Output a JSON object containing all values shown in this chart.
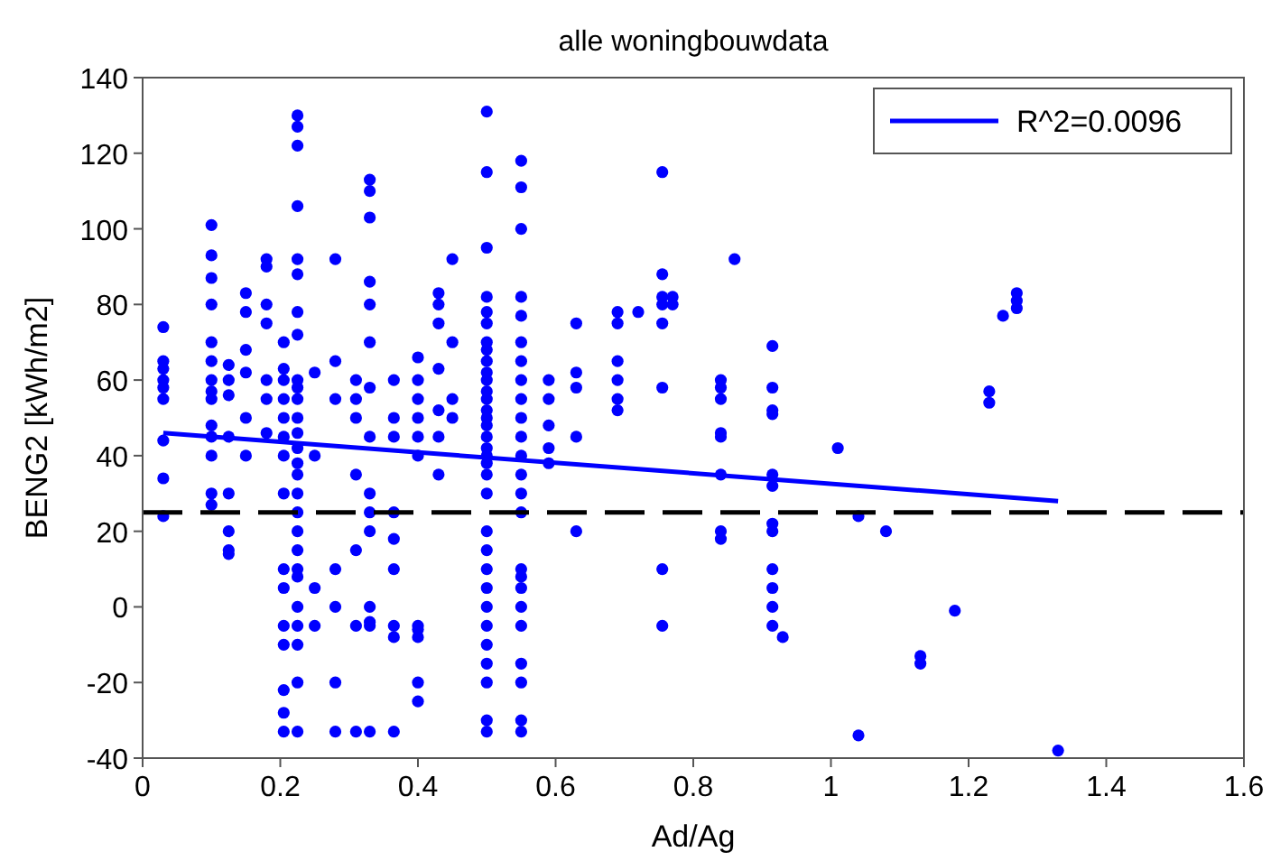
{
  "chart_data": {
    "type": "scatter",
    "title": "alle woningbouwdata",
    "xlabel": "Ad/Ag",
    "ylabel": "BENG2 [kWh/m2]",
    "xlim": [
      0,
      1.6
    ],
    "xticks": [
      0,
      0.2,
      0.4,
      0.6,
      0.8,
      1,
      1.2,
      1.4,
      1.6
    ],
    "ylim": [
      -40,
      140
    ],
    "yticks": [
      -40,
      -20,
      0,
      20,
      40,
      60,
      80,
      100,
      120,
      140
    ],
    "legend": "top right",
    "ref_lines": [
      {
        "axis": "y",
        "value": 25,
        "color": "#000000",
        "line_style": "dashed"
      }
    ],
    "series": [
      {
        "marker": "circle",
        "color": "#0000ff",
        "x": [
          0.03,
          0.03,
          0.03,
          0.03,
          0.03,
          0.03,
          0.03,
          0.03,
          0.03,
          0.1,
          0.1,
          0.1,
          0.1,
          0.1,
          0.1,
          0.1,
          0.1,
          0.1,
          0.1,
          0.1,
          0.1,
          0.1,
          0.1,
          0.125,
          0.125,
          0.125,
          0.125,
          0.125,
          0.125,
          0.125,
          0.125,
          0.15,
          0.15,
          0.15,
          0.15,
          0.15,
          0.15,
          0.18,
          0.18,
          0.18,
          0.18,
          0.18,
          0.18,
          0.18,
          0.205,
          0.205,
          0.205,
          0.205,
          0.205,
          0.205,
          0.205,
          0.205,
          0.205,
          0.205,
          0.205,
          0.205,
          0.205,
          0.205,
          0.205,
          0.225,
          0.225,
          0.225,
          0.225,
          0.225,
          0.225,
          0.225,
          0.225,
          0.225,
          0.225,
          0.225,
          0.225,
          0.225,
          0.225,
          0.225,
          0.225,
          0.225,
          0.225,
          0.225,
          0.225,
          0.225,
          0.225,
          0.225,
          0.225,
          0.225,
          0.225,
          0.225,
          0.25,
          0.25,
          0.25,
          0.25,
          0.28,
          0.28,
          0.28,
          0.28,
          0.28,
          0.28,
          0.28,
          0.31,
          0.31,
          0.31,
          0.31,
          0.31,
          0.31,
          0.31,
          0.33,
          0.33,
          0.33,
          0.33,
          0.33,
          0.33,
          0.33,
          0.33,
          0.33,
          0.33,
          0.33,
          0.33,
          0.33,
          0.33,
          0.33,
          0.365,
          0.365,
          0.365,
          0.365,
          0.365,
          0.365,
          0.365,
          0.365,
          0.365,
          0.4,
          0.4,
          0.4,
          0.4,
          0.4,
          0.4,
          0.4,
          0.4,
          0.4,
          0.4,
          0.4,
          0.43,
          0.43,
          0.43,
          0.43,
          0.43,
          0.43,
          0.43,
          0.45,
          0.45,
          0.45,
          0.45,
          0.5,
          0.5,
          0.5,
          0.5,
          0.5,
          0.5,
          0.5,
          0.5,
          0.5,
          0.5,
          0.5,
          0.5,
          0.5,
          0.5,
          0.5,
          0.5,
          0.5,
          0.5,
          0.5,
          0.5,
          0.5,
          0.5,
          0.5,
          0.5,
          0.5,
          0.5,
          0.5,
          0.5,
          0.5,
          0.5,
          0.5,
          0.5,
          0.5,
          0.55,
          0.55,
          0.55,
          0.55,
          0.55,
          0.55,
          0.55,
          0.55,
          0.55,
          0.55,
          0.55,
          0.55,
          0.55,
          0.55,
          0.55,
          0.55,
          0.55,
          0.55,
          0.55,
          0.55,
          0.55,
          0.55,
          0.55,
          0.55,
          0.59,
          0.59,
          0.59,
          0.59,
          0.59,
          0.63,
          0.63,
          0.63,
          0.63,
          0.63,
          0.69,
          0.69,
          0.69,
          0.69,
          0.69,
          0.69,
          0.72,
          0.755,
          0.755,
          0.755,
          0.755,
          0.755,
          0.755,
          0.755,
          0.755,
          0.77,
          0.77,
          0.84,
          0.84,
          0.84,
          0.84,
          0.84,
          0.84,
          0.84,
          0.84,
          0.86,
          0.915,
          0.915,
          0.915,
          0.915,
          0.915,
          0.915,
          0.915,
          0.915,
          0.915,
          0.915,
          0.915,
          0.915,
          0.93,
          1.01,
          1.04,
          1.04,
          1.08,
          1.13,
          1.13,
          1.18,
          1.23,
          1.23,
          1.25,
          1.27,
          1.27,
          1.27,
          1.33
        ],
        "values": [
          58,
          55,
          60,
          63,
          65,
          44,
          34,
          24,
          74,
          101,
          93,
          87,
          80,
          70,
          65,
          60,
          57,
          55,
          48,
          45,
          40,
          30,
          27,
          64,
          60,
          56,
          45,
          30,
          20,
          15,
          14,
          83,
          78,
          68,
          62,
          50,
          40,
          92,
          90,
          80,
          75,
          60,
          55,
          46,
          70,
          63,
          60,
          55,
          50,
          45,
          40,
          30,
          10,
          5,
          -5,
          -22,
          -33,
          -10,
          -28,
          130,
          127,
          122,
          106,
          92,
          88,
          78,
          72,
          60,
          58,
          55,
          50,
          46,
          42,
          38,
          35,
          30,
          25,
          20,
          10,
          0,
          -10,
          -20,
          -33,
          -5,
          15,
          8,
          62,
          40,
          5,
          -5,
          92,
          65,
          55,
          -20,
          -33,
          10,
          0,
          60,
          55,
          50,
          35,
          15,
          -5,
          -33,
          113,
          110,
          103,
          86,
          80,
          70,
          58,
          45,
          30,
          25,
          20,
          0,
          -5,
          -33,
          -4,
          60,
          50,
          45,
          25,
          18,
          10,
          -5,
          -8,
          -33,
          66,
          60,
          55,
          50,
          45,
          40,
          -5,
          -6,
          -20,
          -25,
          -8,
          83,
          80,
          75,
          63,
          52,
          45,
          35,
          92,
          70,
          55,
          50,
          131,
          115,
          95,
          82,
          78,
          75,
          70,
          68,
          65,
          60,
          55,
          50,
          45,
          42,
          38,
          35,
          30,
          20,
          15,
          10,
          5,
          0,
          -5,
          -10,
          -15,
          -20,
          -30,
          -33,
          40,
          48,
          52,
          57,
          62,
          118,
          111,
          100,
          82,
          77,
          70,
          65,
          60,
          55,
          50,
          45,
          40,
          35,
          30,
          25,
          10,
          5,
          -5,
          -15,
          -20,
          -30,
          -33,
          8,
          0,
          60,
          55,
          48,
          42,
          38,
          75,
          62,
          58,
          45,
          20,
          78,
          75,
          65,
          60,
          55,
          52,
          78,
          115,
          88,
          82,
          80,
          75,
          58,
          10,
          -5,
          82,
          80,
          60,
          58,
          55,
          46,
          45,
          35,
          20,
          18,
          92,
          69,
          58,
          52,
          51,
          35,
          32,
          22,
          20,
          10,
          5,
          0,
          -5,
          -8,
          42,
          24,
          -34,
          20,
          -13,
          -15,
          -1,
          57,
          54,
          77,
          83,
          81,
          79,
          -38
        ]
      },
      {
        "type": "line",
        "name": "R^2=0.0096",
        "color": "#0000ff",
        "x": [
          0.03,
          1.33
        ],
        "values": [
          46,
          28
        ]
      }
    ]
  }
}
